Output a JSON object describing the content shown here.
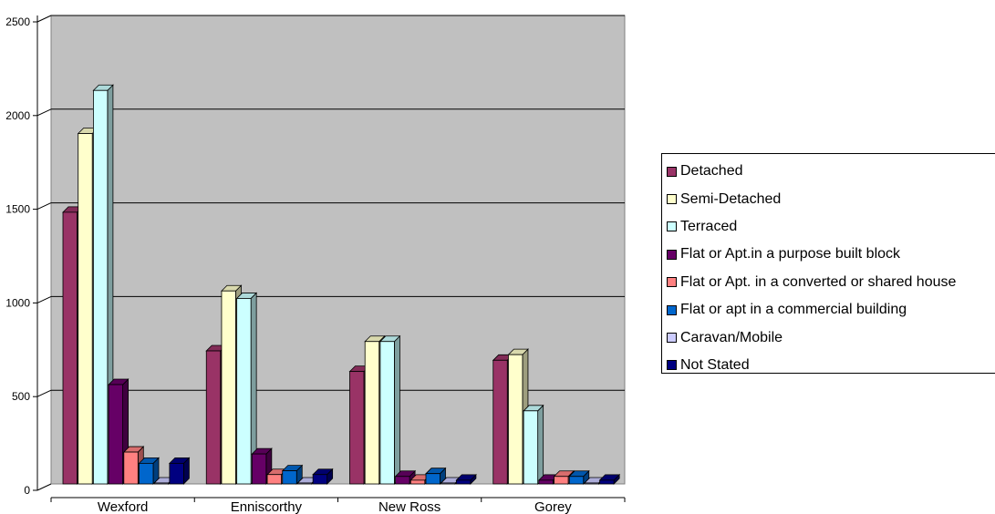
{
  "chart_data": {
    "type": "bar",
    "title": "",
    "xlabel": "",
    "ylabel": "",
    "ylim": [
      0,
      2500
    ],
    "yticks": [
      0,
      500,
      1000,
      1500,
      2000,
      2500
    ],
    "grid": true,
    "legend_position": "right",
    "categories": [
      "Wexford",
      "Enniscorthy",
      "New Ross",
      "Gorey"
    ],
    "series": [
      {
        "name": "Detached",
        "color": "#993366",
        "values": [
          1450,
          710,
          600,
          660
        ]
      },
      {
        "name": "Semi-Detached",
        "color": "#FFFFCC",
        "values": [
          1870,
          1030,
          760,
          690
        ]
      },
      {
        "name": "Terraced",
        "color": "#CCFFFF",
        "values": [
          2100,
          990,
          760,
          390
        ]
      },
      {
        "name": "Flat or Apt.in a purpose built block",
        "color": "#660066",
        "values": [
          530,
          160,
          40,
          20
        ]
      },
      {
        "name": "Flat or Apt. in a converted or shared house",
        "color": "#FF8080",
        "values": [
          170,
          50,
          20,
          40
        ]
      },
      {
        "name": "Flat or apt in a commercial building",
        "color": "#0066CC",
        "values": [
          110,
          70,
          55,
          40
        ]
      },
      {
        "name": "Caravan/Mobile",
        "color": "#CCCCFF",
        "values": [
          5,
          5,
          5,
          5
        ]
      },
      {
        "name": "Not Stated",
        "color": "#000080",
        "values": [
          110,
          50,
          20,
          20
        ]
      }
    ]
  }
}
